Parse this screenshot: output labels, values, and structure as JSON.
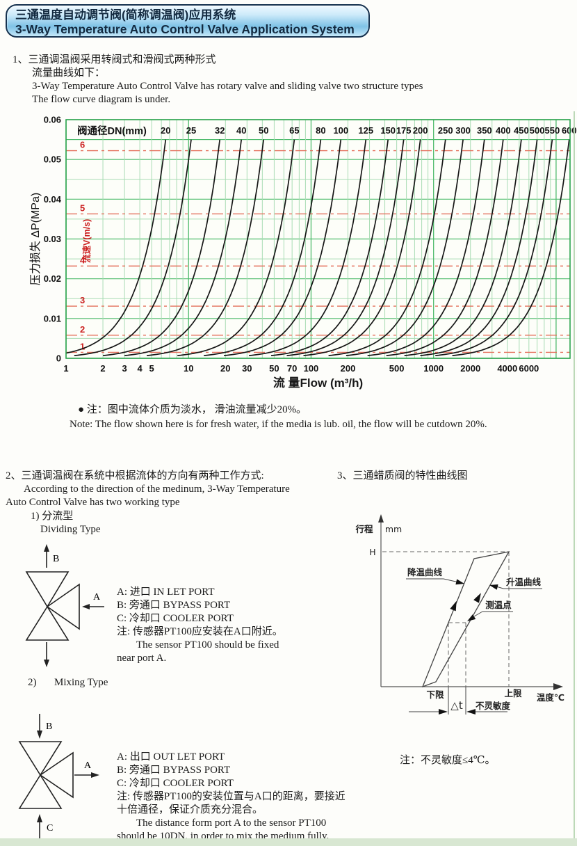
{
  "header": {
    "title_zh": "三通温度自动调节阀(简称调温阀)应用系统",
    "title_en": "3-Way Temperature Auto Control Valve Application System"
  },
  "section1": {
    "lines": [
      "1、三通调温阀采用转阀式和滑阀式两种形式",
      "流量曲线如下：",
      "3-Way Temperature Auto Control Valve has rotary valve and sliding valve two structure types",
      "The flow curve diagram is under."
    ]
  },
  "chart_data": {
    "type": "line",
    "band_label": "阀通径DN(mm)",
    "xlabel": "流 量Flow (m³/h)",
    "ylabel": "压力损失 ΔP(MPa)",
    "velocity_label": "流速V(m/s)",
    "x_scale": "log",
    "xlim": [
      1,
      13000
    ],
    "ylim": [
      0,
      0.06
    ],
    "grid": true,
    "y_tick_labels": [
      "0",
      "0.01",
      "0.02",
      "0.03",
      "0.04",
      "0.05",
      "0.06"
    ],
    "x_ticks": [
      1,
      2,
      3,
      4,
      5,
      10,
      20,
      30,
      50,
      70,
      100,
      200,
      500,
      1000,
      2000,
      4000,
      6000
    ],
    "dp_at_qmax": 0.055,
    "curve_exponent": 2,
    "dn_series": [
      {
        "dn": "20",
        "q_max": 6.5
      },
      {
        "dn": "25",
        "q_max": 10.5
      },
      {
        "dn": "32",
        "q_max": 18
      },
      {
        "dn": "40",
        "q_max": 27
      },
      {
        "dn": "50",
        "q_max": 41
      },
      {
        "dn": "65",
        "q_max": 73
      },
      {
        "dn": "80",
        "q_max": 120
      },
      {
        "dn": "100",
        "q_max": 175
      },
      {
        "dn": "125",
        "q_max": 280
      },
      {
        "dn": "150",
        "q_max": 425
      },
      {
        "dn": "175",
        "q_max": 570
      },
      {
        "dn": "200",
        "q_max": 780
      },
      {
        "dn": "250",
        "q_max": 1250
      },
      {
        "dn": "300",
        "q_max": 1740
      },
      {
        "dn": "350",
        "q_max": 2600
      },
      {
        "dn": "400",
        "q_max": 3700
      },
      {
        "dn": "450",
        "q_max": 5200
      },
      {
        "dn": "500",
        "q_max": 7000
      },
      {
        "dn": "550",
        "q_max": 9300
      },
      {
        "dn": "600",
        "q_max": 12800
      }
    ],
    "velocity_lines": [
      {
        "v": "1",
        "dp": 0.0015
      },
      {
        "v": "2",
        "dp": 0.0058
      },
      {
        "v": "3",
        "dp": 0.0131
      },
      {
        "v": "4",
        "dp": 0.0232
      },
      {
        "v": "5",
        "dp": 0.0363
      },
      {
        "v": "6",
        "dp": 0.0522
      }
    ],
    "colors": {
      "plot_bg": "#fdfef9",
      "grid_major": "#4fbb6d",
      "grid_minor": "#a9dcb4",
      "frame": "#2da44f",
      "curve": "#161616",
      "velocity_line": "#e4705c",
      "velocity_text": "#cc2222",
      "tick_text": "#111111"
    }
  },
  "note": {
    "marker": "●",
    "line_zh": "注：图中流体介质为淡水， 滑油流量减少20%。",
    "line_en": "Note: The flow shown here is for fresh water, if the media is lub. oil, the flow will be cutdown 20%."
  },
  "section2": {
    "lines": [
      "2、三通调温阀在系统中根据流体的方向有两种工作方式:",
      "According to the direction of the medinum, 3-Way Temperature",
      "Auto Control Valve has two working type",
      "1) 分流型",
      "Dividing Type"
    ]
  },
  "section3": {
    "title": "3、三通蜡质阀的特性曲线图"
  },
  "dividing": {
    "port_a": "A",
    "port_b": "B",
    "desc": [
      "A: 进口 IN LET PORT",
      "B: 旁通口 BYPASS PORT",
      "C: 冷却口 COOLER PORT",
      "注: 传感器PT100应安装在A口附近。",
      "The sensor PT100 should be fixed",
      "near port A."
    ]
  },
  "mixing": {
    "heading_num": "2)",
    "heading": "Mixing Type",
    "port_a": "A",
    "port_b": "B",
    "port_c": "C",
    "desc": [
      "A: 出口 OUT LET PORT",
      "B: 旁通口 BYPASS PORT",
      "C: 冷却口 COOLER PORT",
      "注: 传感器PT100的安装位置与A口的距离，要接近",
      "十倍通径，保证介质充分混合。",
      "The distance form port A to the sensor PT100",
      "should be 10DN, in order to mix the medium fully."
    ]
  },
  "fig2": {
    "y_axis_label": "行程",
    "y_unit": "mm",
    "h_label": "H",
    "cooling_curve": "降温曲线",
    "heating_curve": "升温曲线",
    "measure_point": "测温点",
    "lower_limit": "下限",
    "upper_limit": "上限",
    "x_axis_label": "温度℃",
    "delta_t": "△t",
    "insensitivity": "不灵敏度",
    "note": "注：不灵敏度≤4℃。"
  }
}
